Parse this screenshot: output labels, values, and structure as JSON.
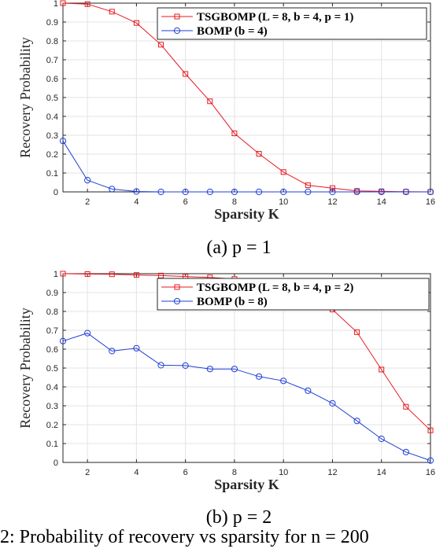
{
  "chart_data": [
    {
      "type": "line",
      "x": [
        1,
        2,
        3,
        4,
        5,
        6,
        7,
        8,
        9,
        10,
        11,
        12,
        13,
        14,
        15,
        16
      ],
      "xlabel": "Sparsity K",
      "ylabel": "Recovery Probability",
      "xlim": [
        1,
        16
      ],
      "ylim": [
        0,
        1
      ],
      "xticks": [
        2,
        4,
        6,
        8,
        10,
        12,
        14,
        16
      ],
      "yticks": [
        0,
        0.1,
        0.2,
        0.3,
        0.4,
        0.5,
        0.6,
        0.7,
        0.8,
        0.9,
        1
      ],
      "grid": true,
      "legend_position": "top-right",
      "series": [
        {
          "name": "TSGBOMP (L = 8, b = 4, p = 1)",
          "color": "#e8191e",
          "marker": "square",
          "values": [
            1.0,
            0.995,
            0.955,
            0.895,
            0.78,
            0.625,
            0.48,
            0.31,
            0.202,
            0.105,
            0.035,
            0.02,
            0.005,
            0.003,
            0.001,
            0.0
          ]
        },
        {
          "name": "BOMP (b = 4)",
          "color": "#1f3fd8",
          "marker": "circle",
          "values": [
            0.27,
            0.062,
            0.015,
            0.002,
            0.0,
            0.0,
            0.0,
            0.0,
            0.0,
            0.0,
            0.0,
            0.0,
            0.0,
            0.0,
            0.0,
            0.0
          ]
        }
      ],
      "caption": "(a) p = 1"
    },
    {
      "type": "line",
      "x": [
        1,
        2,
        3,
        4,
        5,
        6,
        7,
        8,
        9,
        10,
        11,
        12,
        13,
        14,
        15,
        16
      ],
      "xlabel": "Sparsity K",
      "ylabel": "Recovery Probability",
      "xlim": [
        1,
        16
      ],
      "ylim": [
        0,
        1
      ],
      "xticks": [
        2,
        4,
        6,
        8,
        10,
        12,
        14,
        16
      ],
      "yticks": [
        0,
        0.1,
        0.2,
        0.3,
        0.4,
        0.5,
        0.6,
        0.7,
        0.8,
        0.9,
        1
      ],
      "grid": true,
      "legend_position": "top-right",
      "series": [
        {
          "name": "TSGBOMP (L = 8, b = 4, p = 2)",
          "color": "#e8191e",
          "marker": "square",
          "values": [
            1.0,
            0.998,
            0.997,
            0.993,
            0.99,
            0.985,
            0.98,
            0.972,
            0.95,
            0.935,
            0.91,
            0.81,
            0.69,
            0.492,
            0.295,
            0.17
          ]
        },
        {
          "name": "BOMP (b = 8)",
          "color": "#1f3fd8",
          "marker": "circle",
          "values": [
            0.643,
            0.685,
            0.59,
            0.605,
            0.515,
            0.513,
            0.495,
            0.495,
            0.455,
            0.432,
            0.38,
            0.313,
            0.22,
            0.125,
            0.055,
            0.01
          ]
        }
      ],
      "caption": "(b) p = 2"
    }
  ],
  "figure_caption": "2: Probability of recovery vs sparsity for n = 200"
}
